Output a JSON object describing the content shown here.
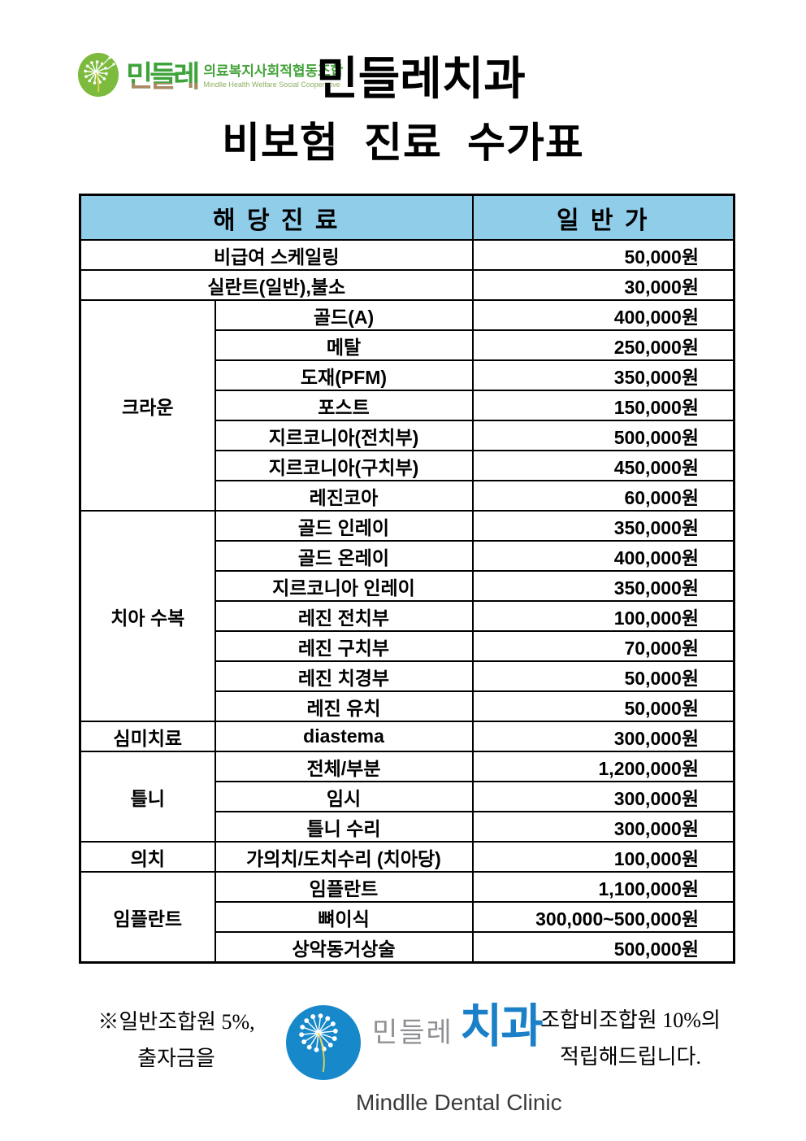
{
  "header": {
    "coop_logo": {
      "name": "민들레",
      "subtitle_kr": "의료복지사회적협동조합",
      "subtitle_en": "Mindlle Health Welfare Social Cooperative"
    },
    "title": "민들레치과",
    "subtitle": "비보험 진료 수가표"
  },
  "table": {
    "col_headers": {
      "treatment": "해 당 진 료",
      "price": "일 반 가"
    },
    "groups": [
      {
        "category": null,
        "items": [
          {
            "treatment": "비급여 스케일링",
            "price": "50,000원"
          },
          {
            "treatment": "실란트(일반),불소",
            "price": "30,000원"
          }
        ]
      },
      {
        "category": "크라운",
        "items": [
          {
            "treatment": "골드(A)",
            "price": "400,000원"
          },
          {
            "treatment": "메탈",
            "price": "250,000원"
          },
          {
            "treatment": "도재(PFM)",
            "price": "350,000원"
          },
          {
            "treatment": "포스트",
            "price": "150,000원"
          },
          {
            "treatment": "지르코니아(전치부)",
            "price": "500,000원"
          },
          {
            "treatment": "지르코니아(구치부)",
            "price": "450,000원"
          },
          {
            "treatment": "레진코아",
            "price": "60,000원"
          }
        ]
      },
      {
        "category": "치아 수복",
        "items": [
          {
            "treatment": "골드 인레이",
            "price": "350,000원"
          },
          {
            "treatment": "골드 온레이",
            "price": "400,000원"
          },
          {
            "treatment": "지르코니아 인레이",
            "price": "350,000원"
          },
          {
            "treatment": "레진 전치부",
            "price": "100,000원"
          },
          {
            "treatment": "레진 구치부",
            "price": "70,000원"
          },
          {
            "treatment": "레진 치경부",
            "price": "50,000원"
          },
          {
            "treatment": "레진 유치",
            "price": "50,000원"
          }
        ]
      },
      {
        "category": "심미치료",
        "items": [
          {
            "treatment": "diastema",
            "price": "300,000원"
          }
        ]
      },
      {
        "category": "틀니",
        "items": [
          {
            "treatment": "전체/부분",
            "price": "1,200,000원"
          },
          {
            "treatment": "임시",
            "price": "300,000원"
          },
          {
            "treatment": "틀니 수리",
            "price": "300,000원"
          }
        ]
      },
      {
        "category": "의치",
        "items": [
          {
            "treatment": "가의치/도치수리 (치아당)",
            "price": "100,000원"
          }
        ]
      },
      {
        "category": "임플란트",
        "items": [
          {
            "treatment": "임플란트",
            "price": "1,100,000원"
          },
          {
            "treatment": "뼈이식",
            "price": "300,000~500,000원"
          },
          {
            "treatment": "상악동거상술",
            "price": "500,000원"
          }
        ]
      }
    ]
  },
  "footer": {
    "note_left": [
      "※일반조합원 5%,",
      "출자금을"
    ],
    "note_right": [
      "조합비조합원 10%의",
      "적립해드립니다."
    ],
    "clinic_logo": {
      "name_kr": "민들레",
      "suffix_kr": "치과",
      "name_en": "Mindlle Dental Clinic"
    }
  },
  "colors": {
    "table_header_bg": "#8FCDE9",
    "coop_leaf_green": "#7DBB3E",
    "coop_text_green": "#3FA33C",
    "coop_text_brown": "#A98A64",
    "coop_sub_green": "#44A43A",
    "coop_sub_en_green": "#8FAF62",
    "clinic_circle_blue": "#1789CB",
    "clinic_text_blue": "#1C80C8",
    "clinic_text_gray": "#8E9093",
    "clinic_en_dark": "#3A3A3C",
    "dandelion_stem_yellow": "#E8D44E"
  }
}
